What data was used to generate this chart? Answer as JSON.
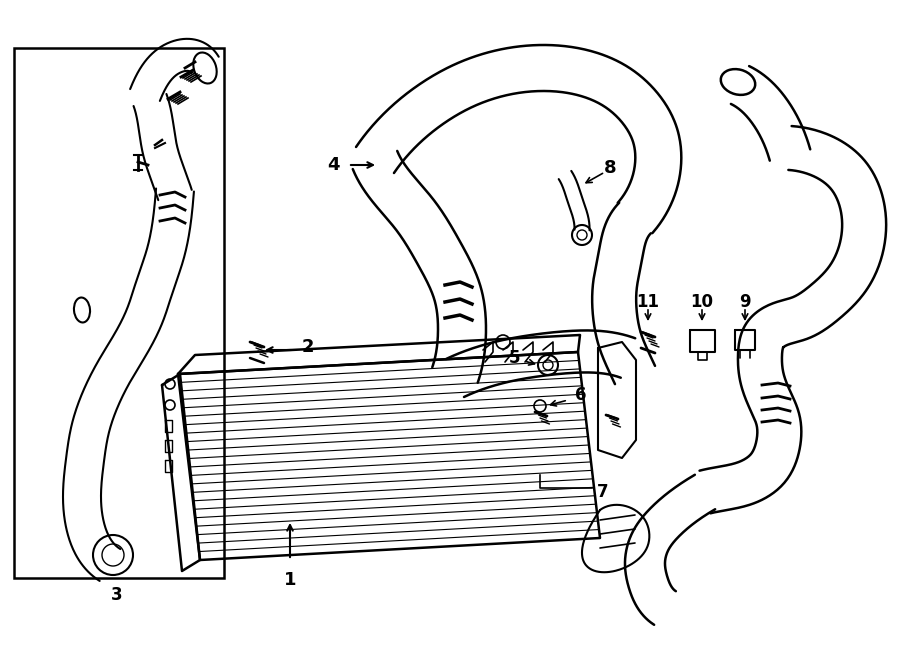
{
  "bg_color": "#ffffff",
  "line_color": "#000000",
  "lw": 1.5,
  "lw_thin": 0.8,
  "lw_thick": 2.0
}
